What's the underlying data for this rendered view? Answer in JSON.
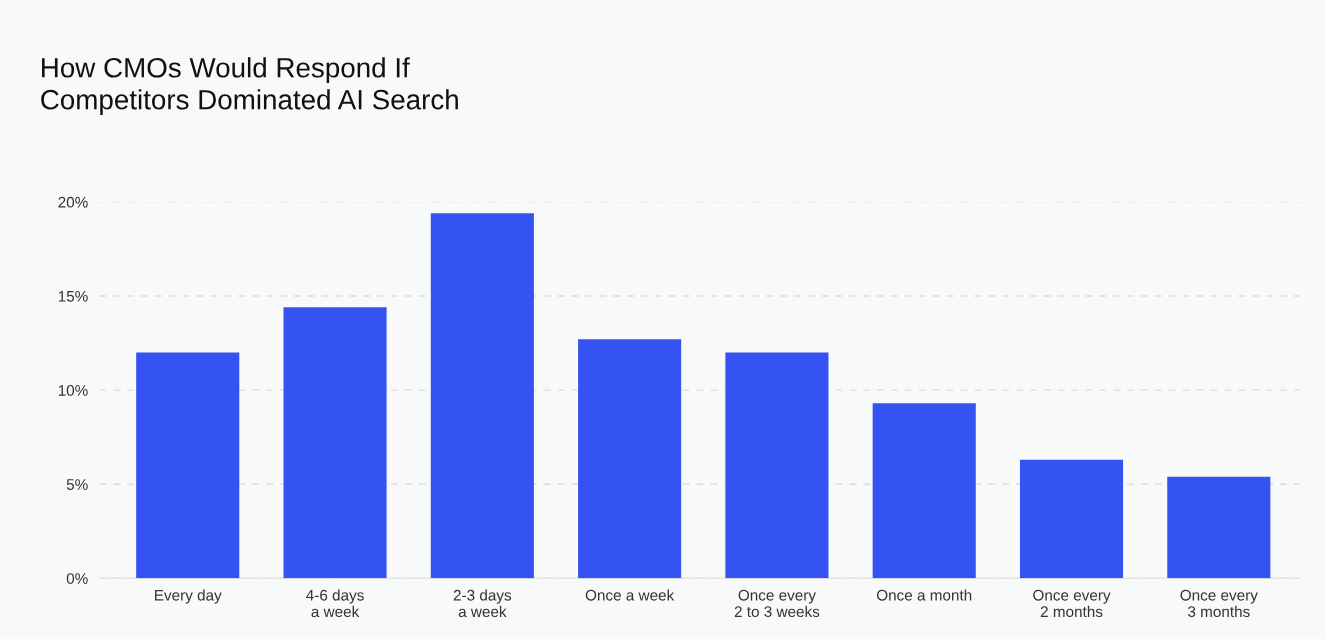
{
  "chart_data": {
    "type": "bar",
    "title": "How CMOs Would Respond If\nCompetitors Dominated AI Search",
    "categories": [
      "Every day",
      "4-6 days\na week",
      "2-3 days\na week",
      "Once a week",
      "Once every\n2 to 3 weeks",
      "Once a month",
      "Once every\n2 months",
      "Once every\n3 months"
    ],
    "values": [
      12,
      14.4,
      19.4,
      12.7,
      12,
      9.3,
      6.3,
      5.4
    ],
    "color": "#3552f2",
    "ylim": [
      0,
      20
    ],
    "yticks": [
      {
        "value": 0,
        "label": "0%"
      },
      {
        "value": 5,
        "label": "5%"
      },
      {
        "value": 10,
        "label": "10%"
      },
      {
        "value": 15,
        "label": "15%"
      },
      {
        "value": 20,
        "label": "20%"
      }
    ],
    "grid": "y"
  }
}
